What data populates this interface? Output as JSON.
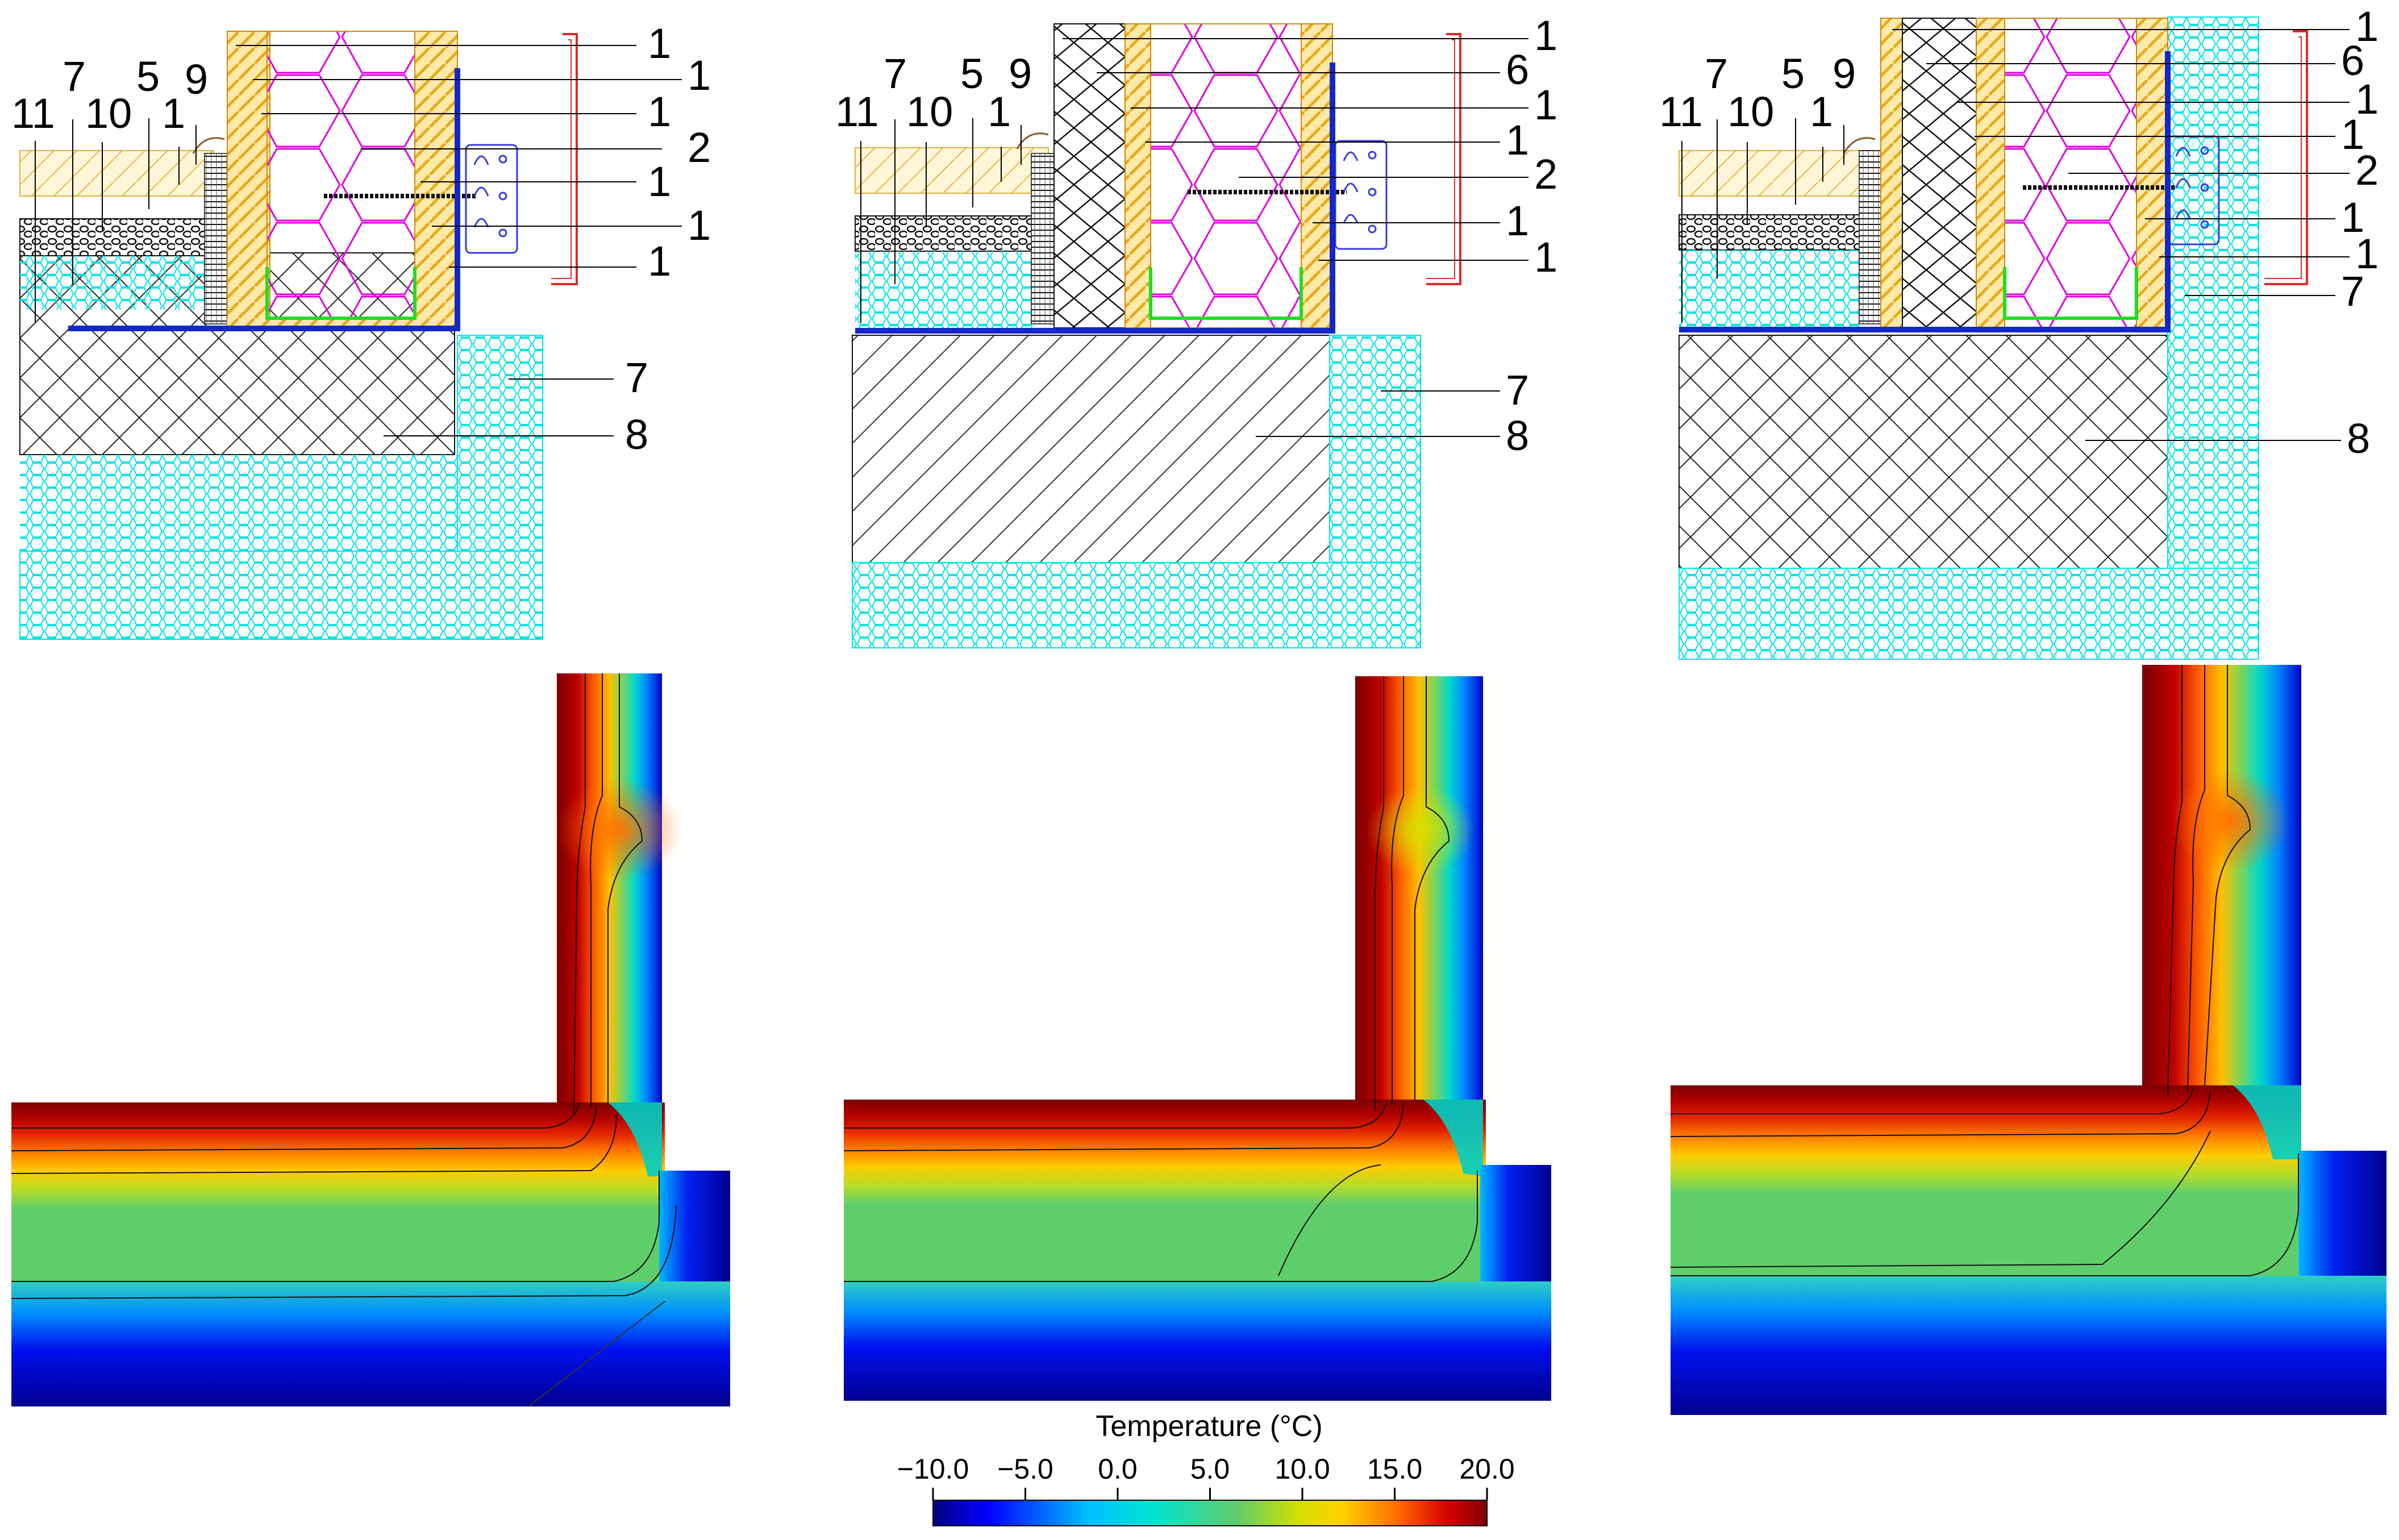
{
  "panels": [
    {
      "id": "variant-a",
      "top_labels": [
        "1",
        "1",
        "1",
        "2",
        "1",
        "1",
        "1"
      ],
      "left_labels": [
        "11",
        "7",
        "10",
        "5",
        "1",
        "9"
      ],
      "right_labels": [
        "7",
        "8"
      ]
    },
    {
      "id": "variant-b",
      "top_labels": [
        "1",
        "6",
        "1",
        "1",
        "2",
        "1",
        "1"
      ],
      "left_labels": [
        "11",
        "7",
        "10",
        "5",
        "1",
        "9"
      ],
      "right_labels": [
        "7",
        "8"
      ]
    },
    {
      "id": "variant-c",
      "top_labels": [
        "1",
        "6",
        "1",
        "1",
        "2",
        "1",
        "1",
        "7"
      ],
      "left_labels": [
        "11",
        "7",
        "10",
        "5",
        "1",
        "9"
      ],
      "right_labels": [
        "8"
      ]
    }
  ],
  "colorbar": {
    "title": "Temperature (°C)",
    "ticks": [
      "−10.0",
      "−5.0",
      "0.0",
      "5.0",
      "10.0",
      "15.0",
      "20.0"
    ],
    "range": [
      -10,
      20
    ],
    "colors": [
      "#000080",
      "#0000ff",
      "#00bfff",
      "#00e5d0",
      "#62cc6a",
      "#d2e000",
      "#ffd000",
      "#ff6a00",
      "#d40000",
      "#800000"
    ]
  },
  "colors": {
    "insulation_cyan": "#00e5e5",
    "mineral_wool_magenta": "#e000e0",
    "timber_yellow": "#f3c23c",
    "membrane_blue": "#1428c8",
    "flashing_red": "#dd2b2b",
    "gravel_black": "#222222"
  }
}
